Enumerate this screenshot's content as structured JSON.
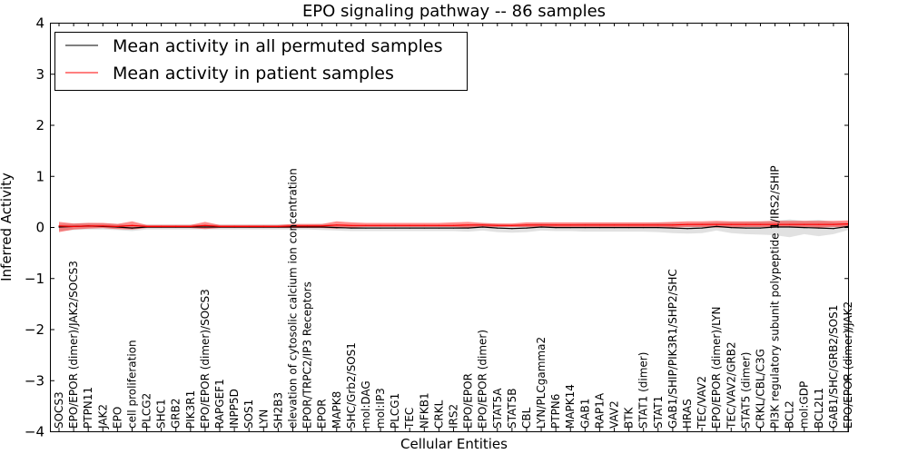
{
  "chart_data": {
    "type": "line",
    "title": "EPO signaling pathway -- 86 samples",
    "xlabel": "Cellular Entities",
    "ylabel": "Inferred Activity",
    "ylim": [
      -4,
      4
    ],
    "yticks": [
      {
        "value": 4,
        "label": "4"
      },
      {
        "value": 3,
        "label": "3"
      },
      {
        "value": 2,
        "label": "2"
      },
      {
        "value": 1,
        "label": "1"
      },
      {
        "value": 0,
        "label": "0"
      },
      {
        "value": -1,
        "label": "−1"
      },
      {
        "value": -2,
        "label": "−2"
      },
      {
        "value": -3,
        "label": "−3"
      },
      {
        "value": -4,
        "label": "−4"
      }
    ],
    "legend": {
      "position": "top-left",
      "entries": [
        {
          "label": "Mean activity in all permuted samples",
          "color": "#000000"
        },
        {
          "label": "Mean activity in patient samples",
          "color": "#ff0000"
        }
      ]
    },
    "categories": [
      "SOCS3",
      "EPO/EPOR (dimer)/JAK2/SOCS3",
      "PTPN11",
      "JAK2",
      "EPO",
      "cell proliferation",
      "PLCG2",
      "SHC1",
      "GRB2",
      "PIK3R1",
      "EPO/EPOR (dimer)/SOCS3",
      "RAPGEF1",
      "INPP5D",
      "SOS1",
      "LYN",
      "SH2B3",
      "elevation of cytosolic calcium ion concentration",
      "EPOR/TRPC2/IP3 Receptors",
      "EPOR",
      "MAPK8",
      "SHC/Grb2/SOS1",
      "mol:DAG",
      "mol:IP3",
      "PLCG1",
      "TEC",
      "NFKB1",
      "CRKL",
      "IRS2",
      "EPO/EPOR",
      "EPO/EPOR (dimer)",
      "STAT5A",
      "STAT5B",
      "CBL",
      "LYN/PLCgamma2",
      "PTPN6",
      "MAPK14",
      "GAB1",
      "RAP1A",
      "VAV2",
      "BTK",
      "STAT1 (dimer)",
      "STAT1",
      "GAB1/SHIP/PIK3R1/SHP2/SHC",
      "HRAS",
      "TEC/VAV2",
      "EPO/EPOR (dimer)/LYN",
      "TEC/VAV2/GRB2",
      "STAT5 (dimer)",
      "CRKL/CBL/C3G",
      "PI3K regulatory subunit polypeptide 1/IRS2/SHIP",
      "BCL2",
      "mol:GDP",
      "BCL2L1",
      "GAB1/SHC/GRB2/SOS1",
      "EPO/EPOR (dimer)/JAK2"
    ],
    "series": [
      {
        "name": "Mean activity in all permuted samples",
        "color": "#000000",
        "values": [
          0.0,
          0.01,
          0.02,
          0.01,
          0.0,
          -0.02,
          0.0,
          0.0,
          0.0,
          0.0,
          0.0,
          0.0,
          0.0,
          0.0,
          0.0,
          0.0,
          0.0,
          0.0,
          0.0,
          -0.01,
          -0.02,
          -0.02,
          -0.02,
          -0.02,
          -0.02,
          -0.02,
          -0.02,
          -0.02,
          -0.02,
          0.0,
          -0.02,
          -0.03,
          -0.02,
          0.0,
          -0.01,
          -0.01,
          -0.01,
          -0.01,
          -0.01,
          -0.01,
          -0.01,
          -0.01,
          -0.02,
          -0.03,
          -0.02,
          0.01,
          -0.01,
          -0.02,
          -0.02,
          0.0,
          0.0,
          -0.01,
          -0.02,
          -0.03,
          0.01
        ],
        "lower": [
          -0.08,
          -0.06,
          -0.05,
          -0.05,
          -0.06,
          -0.08,
          -0.05,
          -0.05,
          -0.05,
          -0.05,
          -0.05,
          -0.05,
          -0.05,
          -0.05,
          -0.05,
          -0.05,
          -0.05,
          -0.05,
          -0.06,
          -0.07,
          -0.08,
          -0.08,
          -0.08,
          -0.08,
          -0.08,
          -0.08,
          -0.08,
          -0.08,
          -0.09,
          -0.07,
          -0.1,
          -0.11,
          -0.1,
          -0.07,
          -0.08,
          -0.08,
          -0.09,
          -0.09,
          -0.09,
          -0.09,
          -0.09,
          -0.1,
          -0.12,
          -0.13,
          -0.12,
          -0.07,
          -0.12,
          -0.14,
          -0.15,
          -0.16,
          -0.2,
          -0.14,
          -0.18,
          -0.14,
          -0.06
        ],
        "upper": [
          0.06,
          0.07,
          0.08,
          0.07,
          0.06,
          0.04,
          0.05,
          0.05,
          0.05,
          0.05,
          0.05,
          0.05,
          0.05,
          0.05,
          0.05,
          0.05,
          0.05,
          0.05,
          0.06,
          0.05,
          0.04,
          0.04,
          0.04,
          0.04,
          0.04,
          0.04,
          0.04,
          0.04,
          0.05,
          0.07,
          0.06,
          0.05,
          0.06,
          0.07,
          0.06,
          0.06,
          0.07,
          0.07,
          0.07,
          0.07,
          0.07,
          0.08,
          0.08,
          0.07,
          0.08,
          0.09,
          0.1,
          0.1,
          0.11,
          0.12,
          0.15,
          0.12,
          0.14,
          0.1,
          0.08
        ]
      },
      {
        "name": "Mean activity in patient samples",
        "color": "#ff0000",
        "values": [
          0.02,
          0.01,
          0.02,
          0.02,
          0.01,
          0.03,
          0.01,
          0.01,
          0.01,
          0.01,
          0.03,
          0.01,
          0.01,
          0.01,
          0.01,
          0.01,
          0.02,
          0.02,
          0.02,
          0.04,
          0.03,
          0.03,
          0.03,
          0.03,
          0.03,
          0.03,
          0.03,
          0.03,
          0.04,
          0.04,
          0.03,
          0.03,
          0.04,
          0.04,
          0.04,
          0.04,
          0.04,
          0.04,
          0.04,
          0.04,
          0.04,
          0.04,
          0.04,
          0.05,
          0.05,
          0.05,
          0.05,
          0.05,
          0.05,
          0.05,
          0.05,
          0.05,
          0.05,
          0.05,
          0.06
        ],
        "lower": [
          -0.1,
          -0.05,
          -0.03,
          -0.02,
          -0.04,
          -0.05,
          -0.02,
          -0.02,
          -0.02,
          -0.02,
          -0.04,
          -0.02,
          -0.02,
          -0.02,
          -0.02,
          -0.02,
          -0.02,
          -0.02,
          -0.02,
          -0.03,
          -0.01,
          0.0,
          0.0,
          0.0,
          0.0,
          0.0,
          0.0,
          0.0,
          -0.01,
          0.0,
          0.0,
          0.0,
          0.0,
          0.0,
          0.0,
          0.0,
          0.0,
          0.0,
          0.0,
          0.0,
          0.0,
          0.0,
          -0.01,
          0.0,
          0.0,
          -0.01,
          -0.01,
          0.0,
          0.0,
          -0.01,
          0.0,
          0.0,
          -0.01,
          0.0,
          -0.01
        ],
        "upper": [
          0.1,
          0.07,
          0.08,
          0.08,
          0.06,
          0.11,
          0.04,
          0.04,
          0.04,
          0.04,
          0.1,
          0.04,
          0.04,
          0.04,
          0.04,
          0.04,
          0.06,
          0.06,
          0.06,
          0.11,
          0.09,
          0.08,
          0.08,
          0.08,
          0.08,
          0.08,
          0.08,
          0.09,
          0.1,
          0.08,
          0.07,
          0.07,
          0.09,
          0.09,
          0.09,
          0.09,
          0.09,
          0.09,
          0.09,
          0.09,
          0.09,
          0.09,
          0.1,
          0.11,
          0.11,
          0.12,
          0.11,
          0.11,
          0.11,
          0.12,
          0.12,
          0.12,
          0.12,
          0.12,
          0.13
        ]
      }
    ]
  }
}
